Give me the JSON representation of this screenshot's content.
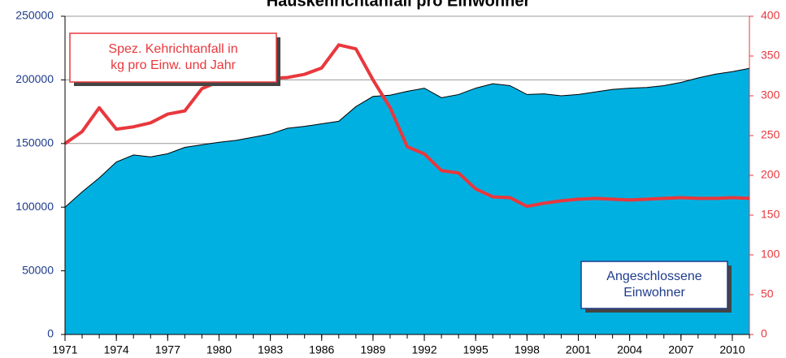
{
  "chart_data": {
    "type": "area-line",
    "title": "Hauskehrichtanfall pro Einwohner",
    "x": [
      1971,
      1972,
      1973,
      1974,
      1975,
      1976,
      1977,
      1978,
      1979,
      1980,
      1981,
      1982,
      1983,
      1984,
      1985,
      1986,
      1987,
      1988,
      1989,
      1990,
      1991,
      1992,
      1993,
      1994,
      1995,
      1996,
      1997,
      1998,
      1999,
      2000,
      2001,
      2002,
      2003,
      2004,
      2005,
      2006,
      2007,
      2008,
      2009,
      2010,
      2011
    ],
    "xlim": [
      1971,
      2011
    ],
    "xticks": [
      1971,
      1974,
      1977,
      1980,
      1983,
      1986,
      1989,
      1992,
      1995,
      1998,
      2001,
      2004,
      2007,
      2010
    ],
    "ylim": [
      0,
      250000
    ],
    "yticks": [
      0,
      50000,
      100000,
      150000,
      200000,
      250000
    ],
    "y2lim": [
      0,
      400
    ],
    "y2ticks": [
      0,
      50,
      100,
      150,
      200,
      250,
      300,
      350,
      400
    ],
    "grid": true,
    "series": [
      {
        "name": "Angeschlossene Einwohner",
        "color": "#00b0e0",
        "kind": "area",
        "values": [
          100000,
          112000,
          123000,
          135500,
          141000,
          139500,
          142000,
          147000,
          149000,
          151000,
          152500,
          155000,
          157500,
          162000,
          163500,
          165500,
          167500,
          179000,
          187000,
          188000,
          191000,
          193500,
          186000,
          188500,
          193500,
          197000,
          195500,
          188500,
          189000,
          187500,
          188500,
          190500,
          192500,
          193500,
          194000,
          195500,
          198000,
          201500,
          204500,
          206500,
          209000
        ]
      },
      {
        "name": "Spez. Kehrichtanfall in kg pro Einw. und Jahr",
        "color": "#e8383d",
        "kind": "line",
        "axis": "y2",
        "values": [
          240,
          255,
          285,
          258,
          261,
          266,
          277,
          281,
          309,
          318,
          320,
          321,
          322,
          323,
          327,
          335,
          364,
          359,
          320,
          285,
          236,
          227,
          206,
          203,
          183,
          173,
          172,
          161,
          165,
          168,
          170,
          171,
          170,
          169,
          170,
          171,
          172,
          171,
          171,
          172,
          171
        ]
      }
    ],
    "annotations": [
      {
        "lines": [
          "Spez. Kehrichtanfall in",
          "kg pro Einw. und Jahr"
        ],
        "color": "#e8383d"
      },
      {
        "lines": [
          "Angeschlossene",
          "Einwohner"
        ],
        "color": "#1f3c8c"
      }
    ]
  }
}
